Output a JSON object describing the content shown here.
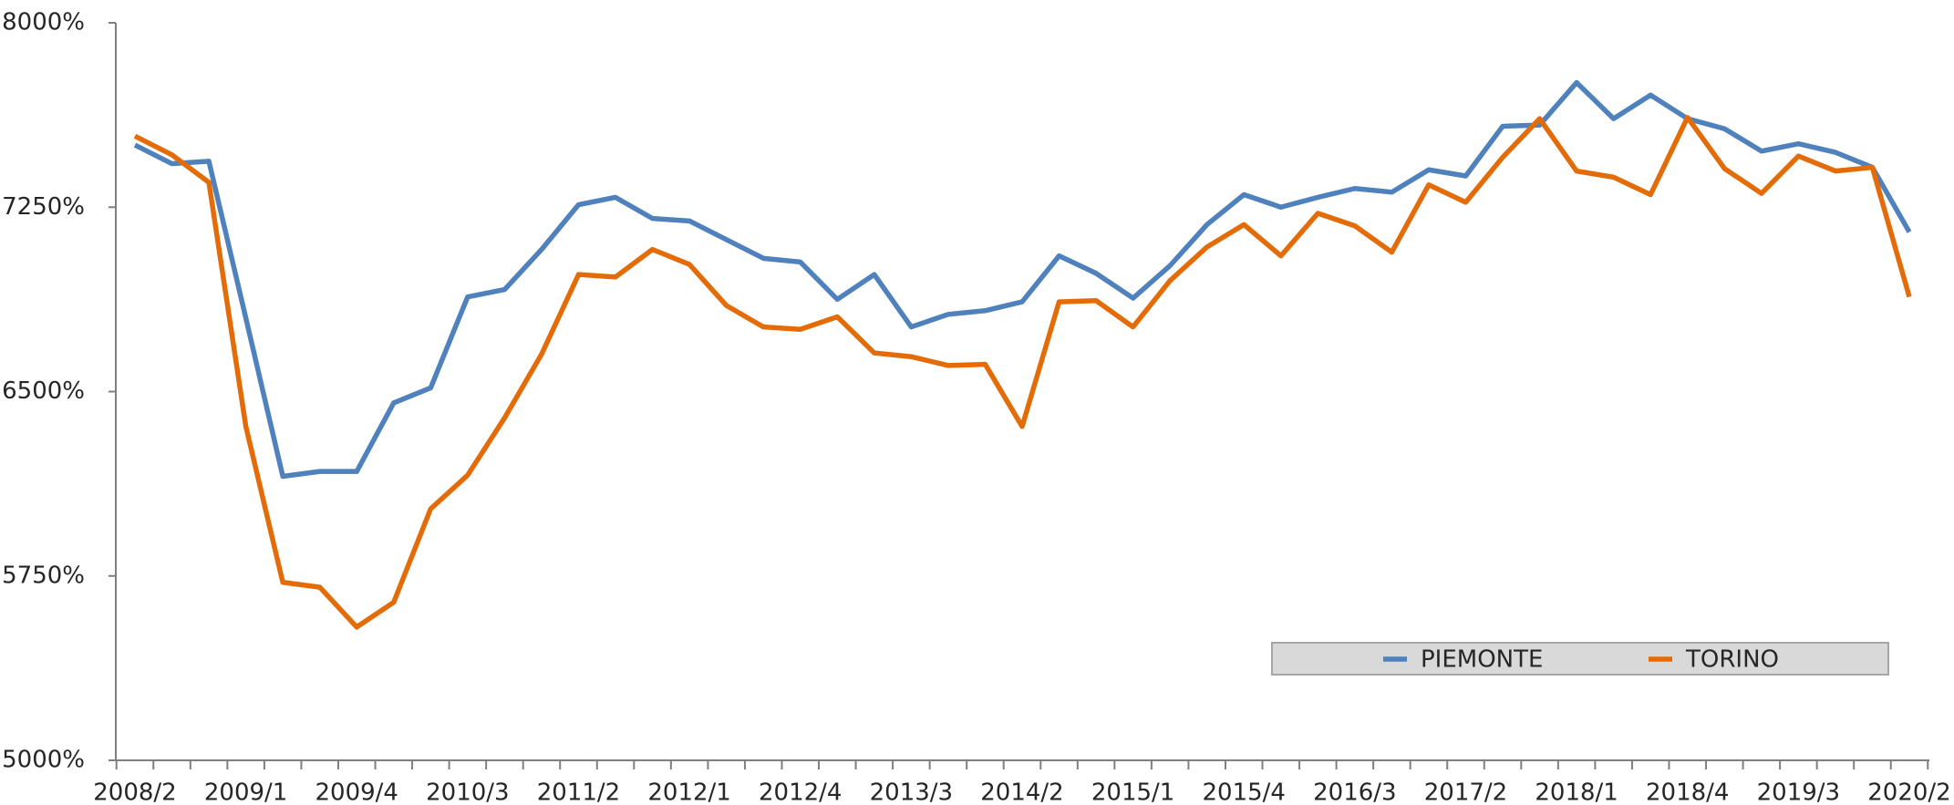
{
  "chart_data": {
    "type": "line",
    "categories": [
      "2008/2",
      null,
      null,
      "2009/1",
      null,
      null,
      "2009/4",
      null,
      null,
      "2010/3",
      null,
      null,
      "2011/2",
      null,
      null,
      "2012/1",
      null,
      null,
      "2012/4",
      null,
      null,
      "2013/3",
      null,
      null,
      "2014/2",
      null,
      null,
      "2015/1",
      null,
      null,
      "2015/4",
      null,
      null,
      "2016/3",
      null,
      null,
      "2017/2",
      null,
      null,
      "2018/1",
      null,
      null,
      "2018/4",
      null,
      null,
      "2019/3",
      null,
      null,
      "2020/2"
    ],
    "series": [
      {
        "name": "PIEMONTE",
        "color": "#4f81bd",
        "values": [
          7503,
          7427,
          7437,
          6799,
          6155,
          6175,
          6175,
          6454,
          6515,
          6885,
          6915,
          7078,
          7260,
          7290,
          7204,
          7194,
          7118,
          7042,
          7027,
          6875,
          6976,
          6763,
          6814,
          6829,
          6865,
          7052,
          6981,
          6880,
          7012,
          7179,
          7301,
          7250,
          7290,
          7326,
          7311,
          7402,
          7377,
          7579,
          7584,
          7757,
          7610,
          7706,
          7610,
          7569,
          7478,
          7508,
          7473,
          7412,
          7149
        ]
      },
      {
        "name": "TORINO",
        "color": "#e36c09",
        "values": [
          7539,
          7463,
          7351,
          6358,
          5724,
          5704,
          5542,
          5643,
          6023,
          6160,
          6393,
          6652,
          6976,
          6966,
          7078,
          7017,
          6850,
          6763,
          6753,
          6804,
          6657,
          6642,
          6606,
          6611,
          6358,
          6865,
          6870,
          6763,
          6951,
          7088,
          7179,
          7052,
          7225,
          7174,
          7067,
          7341,
          7270,
          7453,
          7610,
          7397,
          7372,
          7301,
          7615,
          7407,
          7306,
          7458,
          7397,
          7412,
          6885
        ]
      }
    ],
    "ylim": [
      5000,
      8000
    ],
    "yticks": [
      {
        "value": 5000,
        "label": "5000%"
      },
      {
        "value": 5750,
        "label": "5750%"
      },
      {
        "value": 6500,
        "label": "6500%"
      },
      {
        "value": 7250,
        "label": "7250%"
      },
      {
        "value": 8000,
        "label": "8000%"
      }
    ],
    "grid": false,
    "legend": "lower right"
  }
}
